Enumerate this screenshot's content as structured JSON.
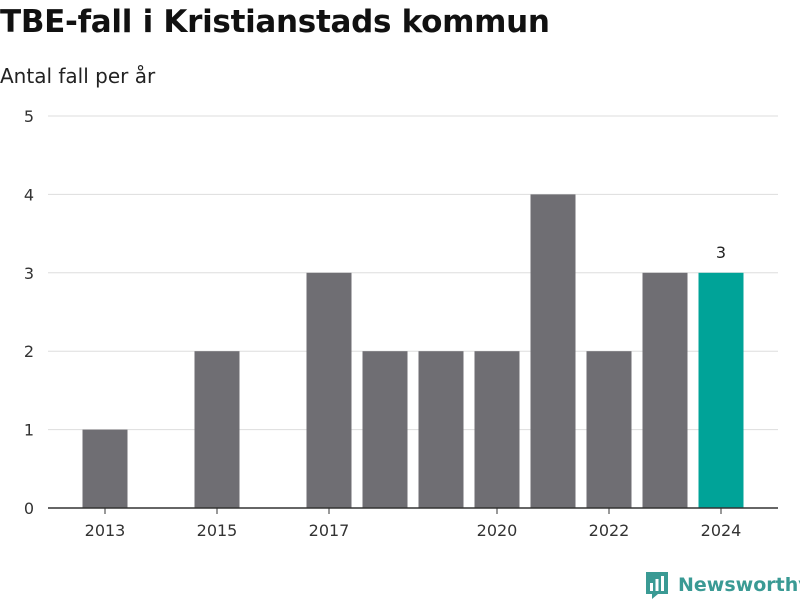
{
  "chart_data": {
    "type": "bar",
    "title": "TBE-fall i Kristianstads kommun",
    "subtitle": "Antal fall per år",
    "x": [
      2013,
      2014,
      2015,
      2016,
      2017,
      2018,
      2019,
      2020,
      2021,
      2022,
      2023,
      2024
    ],
    "values": [
      1,
      0,
      2,
      0,
      3,
      2,
      2,
      2,
      4,
      2,
      3,
      3
    ],
    "x_tick_labels": [
      "2013",
      "2015",
      "2017",
      "2020",
      "2022",
      "2024"
    ],
    "y_ticks": [
      0,
      1,
      2,
      3,
      4,
      5
    ],
    "ylim": [
      0,
      5
    ],
    "grid": true,
    "highlight": {
      "year": 2024,
      "label": "3"
    },
    "colors": {
      "bar": "#6f6e73",
      "highlight": "#00a398",
      "grid": "#dddddd",
      "axis": "#333333"
    }
  },
  "brand": {
    "name": "Newsworthy",
    "icon": "newsworthy-logo-icon",
    "color": "#3a9a94"
  }
}
